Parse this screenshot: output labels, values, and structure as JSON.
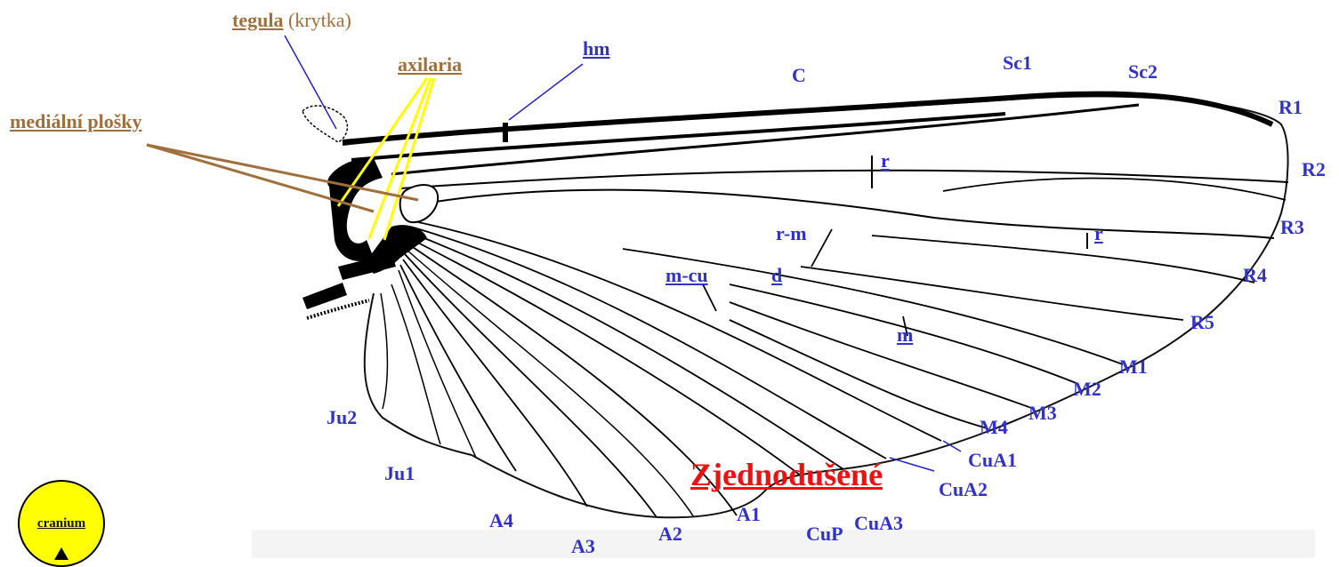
{
  "structures": {
    "tegula": "tegula",
    "tegula_note": "(krytka)",
    "axilaria": "axilaria",
    "medialni": "mediální plošky",
    "hm": "hm"
  },
  "veins": {
    "C": "C",
    "Sc1": "Sc1",
    "Sc2": "Sc2",
    "R1": "R1",
    "R2": "R2",
    "R3": "R3",
    "R4": "R4",
    "R5": "R5",
    "M1": "M1",
    "M2": "M2",
    "M3": "M3",
    "M4": "M4",
    "CuA1": "CuA1",
    "CuA2": "CuA2",
    "CuA3": "CuA3",
    "CuP": "CuP",
    "A1": "A1",
    "A2": "A2",
    "A3": "A3",
    "A4": "A4",
    "Ju1": "Ju1",
    "Ju2": "Ju2"
  },
  "crossveins": {
    "r_upper": "r",
    "r_lower": "r",
    "rm": "r-m",
    "mcu": "m-cu",
    "d": "d",
    "m": "m"
  },
  "title_link": "Zjednodušené",
  "cranium": "cranium",
  "colors": {
    "vein_label": "#3232c8",
    "structure_label": "#a0703c",
    "title": "#ee1111",
    "axilaria_lines": "#ffff00",
    "cranium_fill": "#ffff00"
  }
}
